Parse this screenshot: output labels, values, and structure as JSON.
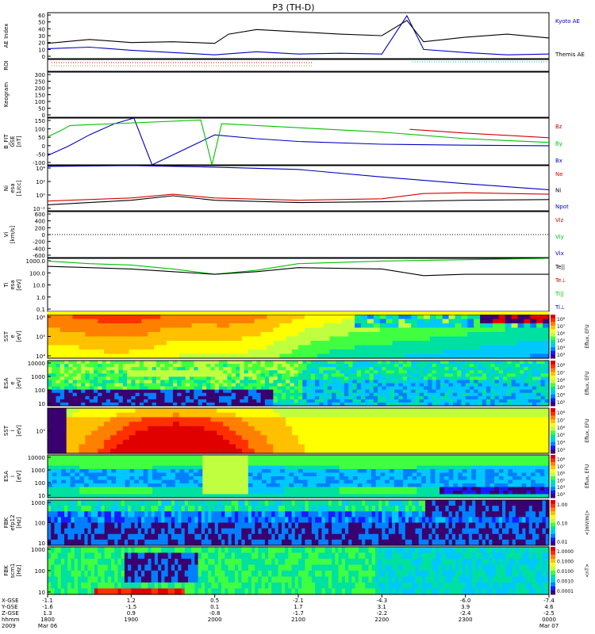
{
  "title": "P3 (TH-D)",
  "colors": {
    "red": "#d40000",
    "green": "#00c000",
    "blue": "#0000c0",
    "black": "#000000",
    "cyan": "#00c8c8"
  },
  "chart_data": {
    "type": "line",
    "title": "P3 (TH-D)",
    "panels": [
      {
        "id": "ae",
        "ylabel": "AE Index",
        "ticks": [
          "60",
          "50",
          "40",
          "30",
          "20",
          "10",
          "0"
        ],
        "ylim": [
          0,
          60
        ],
        "legend": [
          {
            "label": "Kyoto AE",
            "color": "#0000c0"
          },
          {
            "label": "Themis AE",
            "color": "#000000"
          }
        ]
      },
      {
        "id": "roi",
        "ylabel": "ROI",
        "ticks": [],
        "legend": []
      },
      {
        "id": "keogram",
        "ylabel": "Keogram",
        "ticks": [
          "300",
          "250",
          "200",
          "150",
          "100",
          "50",
          "0"
        ],
        "ylim": [
          0,
          300
        ],
        "legend": []
      },
      {
        "id": "bfit",
        "ylabel": "B_FIT\nGSE\n[nT]",
        "ticks": [
          "150",
          "100",
          "50",
          "0",
          "-50",
          "-100"
        ],
        "ylim": [
          -100,
          150
        ],
        "legend": [
          {
            "label": "Bz",
            "color": "#d40000"
          },
          {
            "label": "By",
            "color": "#00c000"
          },
          {
            "label": "Bx",
            "color": "#0000c0"
          }
        ]
      },
      {
        "id": "ni",
        "ylabel": "Ni\nesa\n[1/cc]",
        "ticks": [
          "10⁴",
          "10²",
          "10⁰",
          "10⁻²"
        ],
        "ylim": [
          -2,
          4
        ],
        "log": true,
        "legend": [
          {
            "label": "Ne",
            "color": "#d40000"
          },
          {
            "label": "Ni",
            "color": "#000000"
          },
          {
            "label": "Npot",
            "color": "#0000c0"
          }
        ]
      },
      {
        "id": "vi",
        "ylabel": "Vi\n[km/s]",
        "ticks": [
          "600",
          "400",
          "200",
          "0",
          "-200",
          "-400",
          "-600"
        ],
        "ylim": [
          -600,
          600
        ],
        "legend": [
          {
            "label": "Viz",
            "color": "#d40000"
          },
          {
            "label": "Viy",
            "color": "#00c000"
          },
          {
            "label": "Vix",
            "color": "#0000c0"
          }
        ]
      },
      {
        "id": "ti",
        "ylabel": "Ti\nesa\n[eV]",
        "ticks": [
          "1000.0",
          "100.0",
          "10.0",
          "1.0",
          "0.1"
        ],
        "ylim": [
          -1,
          3
        ],
        "log": true,
        "legend": [
          {
            "label": "Te||",
            "color": "#000000"
          },
          {
            "label": "Te⊥",
            "color": "#d40000"
          },
          {
            "label": "Ti||",
            "color": "#00c000"
          },
          {
            "label": "Ti⊥",
            "color": "#0000c0"
          }
        ]
      },
      {
        "id": "sst_e",
        "ylabel": "SST\ne\n[eV]",
        "ticks": [
          "10⁶",
          "10⁵",
          "10⁴"
        ],
        "cbar": "Eflux, EFU",
        "cbar_ticks": [
          "10⁸",
          "10⁷",
          "10⁶",
          "10⁵",
          "10⁴",
          "10³"
        ]
      },
      {
        "id": "esa_e",
        "ylabel": "ESA\ne\n[eV]",
        "ticks": [
          "10000",
          "1000",
          "100",
          "10"
        ],
        "cbar": "Eflux, EFU",
        "cbar_ticks": [
          "10⁸",
          "10⁷",
          "10⁶",
          "10⁵",
          "10⁴",
          "10³"
        ]
      },
      {
        "id": "sst_i",
        "ylabel": "SST\ni\n[eV]",
        "ticks": [
          "10⁵"
        ],
        "cbar": "Eflux, EFU",
        "cbar_ticks": [
          "10⁸",
          "10⁷",
          "10⁶",
          "10⁵",
          "10⁴",
          "10³"
        ]
      },
      {
        "id": "esa_i",
        "ylabel": "ESA\ni\n[eV]",
        "ticks": [
          "10000",
          "1000",
          "100",
          "10"
        ],
        "cbar": "Eflux, EFU",
        "cbar_ticks": [
          "10⁸",
          "10⁷",
          "10⁶",
          "10⁵",
          "10⁴",
          "10³"
        ]
      },
      {
        "id": "fbk_e",
        "ylabel": "FBK\nefp12\n[Hz]",
        "ticks": [
          "1000",
          "100",
          "10"
        ],
        "cbar": "<|mV/m|>",
        "cbar_ticks": [
          "1.00",
          "0.10",
          "0.01"
        ]
      },
      {
        "id": "fbk_b",
        "ylabel": "FBK\nscm1\n[Hz]",
        "ticks": [
          "1000",
          "100",
          "10"
        ],
        "cbar": "<nT>",
        "cbar_ticks": [
          "1.0000",
          "0.1000",
          "0.0100",
          "0.0010",
          "0.0001"
        ]
      }
    ],
    "time_axis": {
      "row_labels": [
        "X-GSE",
        "Y-GSE",
        "Z-GSE",
        "hhmm",
        "2009"
      ],
      "columns": [
        {
          "x": "-1.1",
          "y": "-1.6",
          "z": "1.3",
          "t": "1800",
          "d": "Mar 06"
        },
        {
          "x": "1.2",
          "y": "-1.5",
          "z": "0.9",
          "t": "1900",
          "d": ""
        },
        {
          "x": "0.5",
          "y": "0.1",
          "z": "-0.8",
          "t": "2000",
          "d": ""
        },
        {
          "x": "-2.1",
          "y": "1.7",
          "z": "-1.7",
          "t": "2100",
          "d": ""
        },
        {
          "x": "-4.3",
          "y": "3.1",
          "z": "-2.2",
          "t": "2200",
          "d": ""
        },
        {
          "x": "-6.0",
          "y": "3.9",
          "z": "-2.4",
          "t": "2300",
          "d": ""
        },
        {
          "x": "-7.4",
          "y": "4.6",
          "z": "-2.5",
          "t": "0000",
          "d": "Mar 07"
        }
      ]
    },
    "series": [
      {
        "name": "Kyoto AE",
        "panel": "ae",
        "color": "#0000c0",
        "x": [
          1800,
          1830,
          1900,
          1930,
          2000,
          2030,
          2100,
          2130,
          2200,
          2218,
          2230,
          2300,
          2330,
          0
        ],
        "y": [
          13,
          15,
          11,
          8,
          5,
          9,
          6,
          7,
          6,
          56,
          12,
          8,
          5,
          6
        ]
      },
      {
        "name": "Themis AE",
        "panel": "ae",
        "color": "#000000",
        "x": [
          1800,
          1830,
          1900,
          1930,
          2000,
          2010,
          2030,
          2100,
          2130,
          2200,
          2218,
          2230,
          2300,
          2330,
          0
        ],
        "y": [
          20,
          25,
          21,
          22,
          20,
          32,
          38,
          35,
          32,
          30,
          50,
          22,
          28,
          32,
          27
        ]
      },
      {
        "name": "Bx",
        "panel": "bfit",
        "color": "#0000c0",
        "x": [
          1800,
          1815,
          1830,
          1848,
          1902,
          1915,
          2000,
          2030,
          2100,
          2200,
          2300,
          0
        ],
        "y": [
          -50,
          0,
          60,
          120,
          150,
          -100,
          60,
          40,
          25,
          10,
          5,
          2
        ]
      },
      {
        "name": "By",
        "panel": "bfit",
        "color": "#00c000",
        "x": [
          1800,
          1810,
          1816,
          1950,
          1958,
          2005,
          2200,
          2300,
          0
        ],
        "y": [
          50,
          85,
          110,
          140,
          -100,
          120,
          75,
          40,
          20
        ]
      },
      {
        "name": "Bz",
        "panel": "bfit",
        "color": "#d40000",
        "x": [
          2220,
          2300,
          0
        ],
        "y": [
          90,
          70,
          45
        ]
      },
      {
        "name": "Npot",
        "panel": "ni",
        "color": "#0000c0",
        "x": [
          1800,
          1900,
          2000,
          2100,
          2200,
          2300,
          0
        ],
        "y": [
          3.9,
          4.0,
          3.8,
          3.5,
          2.5,
          1.6,
          0.8
        ]
      },
      {
        "name": "Ne",
        "panel": "ni",
        "color": "#d40000",
        "x": [
          1800,
          1900,
          1930,
          2000,
          2100,
          2200,
          2230,
          2300,
          0
        ],
        "y": [
          -0.7,
          -0.3,
          0.2,
          -0.3,
          -0.6,
          -0.4,
          0.3,
          0.4,
          0.2
        ]
      },
      {
        "name": "Ni",
        "panel": "ni",
        "color": "#000000",
        "x": [
          1800,
          1900,
          1930,
          2000,
          2100,
          2200,
          2300,
          0
        ],
        "y": [
          -1.2,
          -0.6,
          0.0,
          -0.6,
          -0.9,
          -0.8,
          -0.6,
          -0.5
        ]
      },
      {
        "name": "Ti||",
        "panel": "ti",
        "color": "#00c000",
        "x": [
          1800,
          1830,
          1900,
          1930,
          2000,
          2030,
          2100,
          2200,
          2300,
          0
        ],
        "y": [
          2.8,
          2.6,
          2.5,
          2.2,
          1.8,
          2.1,
          2.6,
          2.8,
          2.9,
          3.0
        ]
      },
      {
        "name": "Te||",
        "panel": "ti",
        "color": "#000000",
        "x": [
          1800,
          1900,
          1930,
          2000,
          2030,
          2100,
          2200,
          2230,
          2300,
          0
        ],
        "y": [
          2.4,
          2.2,
          2.0,
          1.8,
          2.0,
          2.3,
          2.2,
          1.7,
          1.8,
          1.8
        ]
      }
    ]
  }
}
